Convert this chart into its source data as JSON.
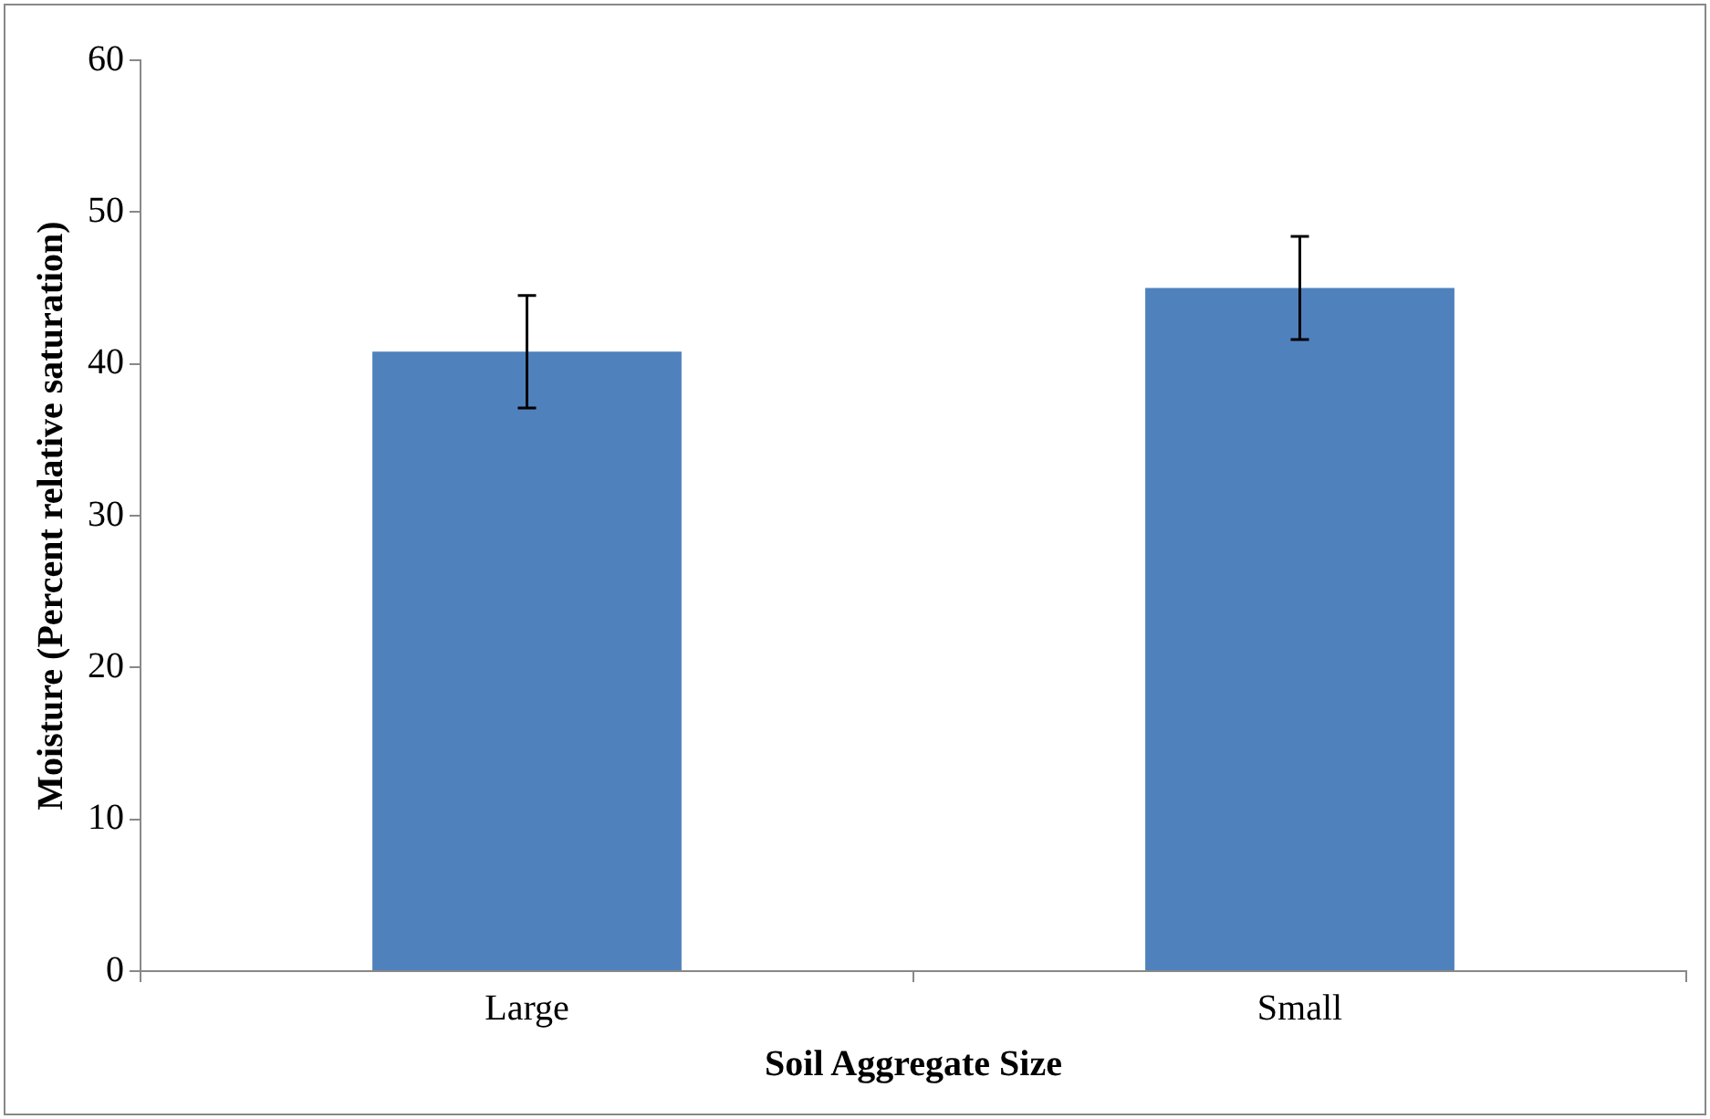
{
  "chart_data": {
    "type": "bar",
    "xlabel": "Soil Aggregate Size",
    "ylabel": "Moisture (Percent relative saturation)",
    "categories": [
      "Large",
      "Small"
    ],
    "values": [
      40.8,
      45.0
    ],
    "errors": [
      3.7,
      3.4
    ],
    "color": "#4f81bd",
    "ylim": [
      0,
      60
    ],
    "yticks": [
      0,
      10,
      20,
      30,
      40,
      50,
      60
    ],
    "grid": false,
    "legend": false
  }
}
